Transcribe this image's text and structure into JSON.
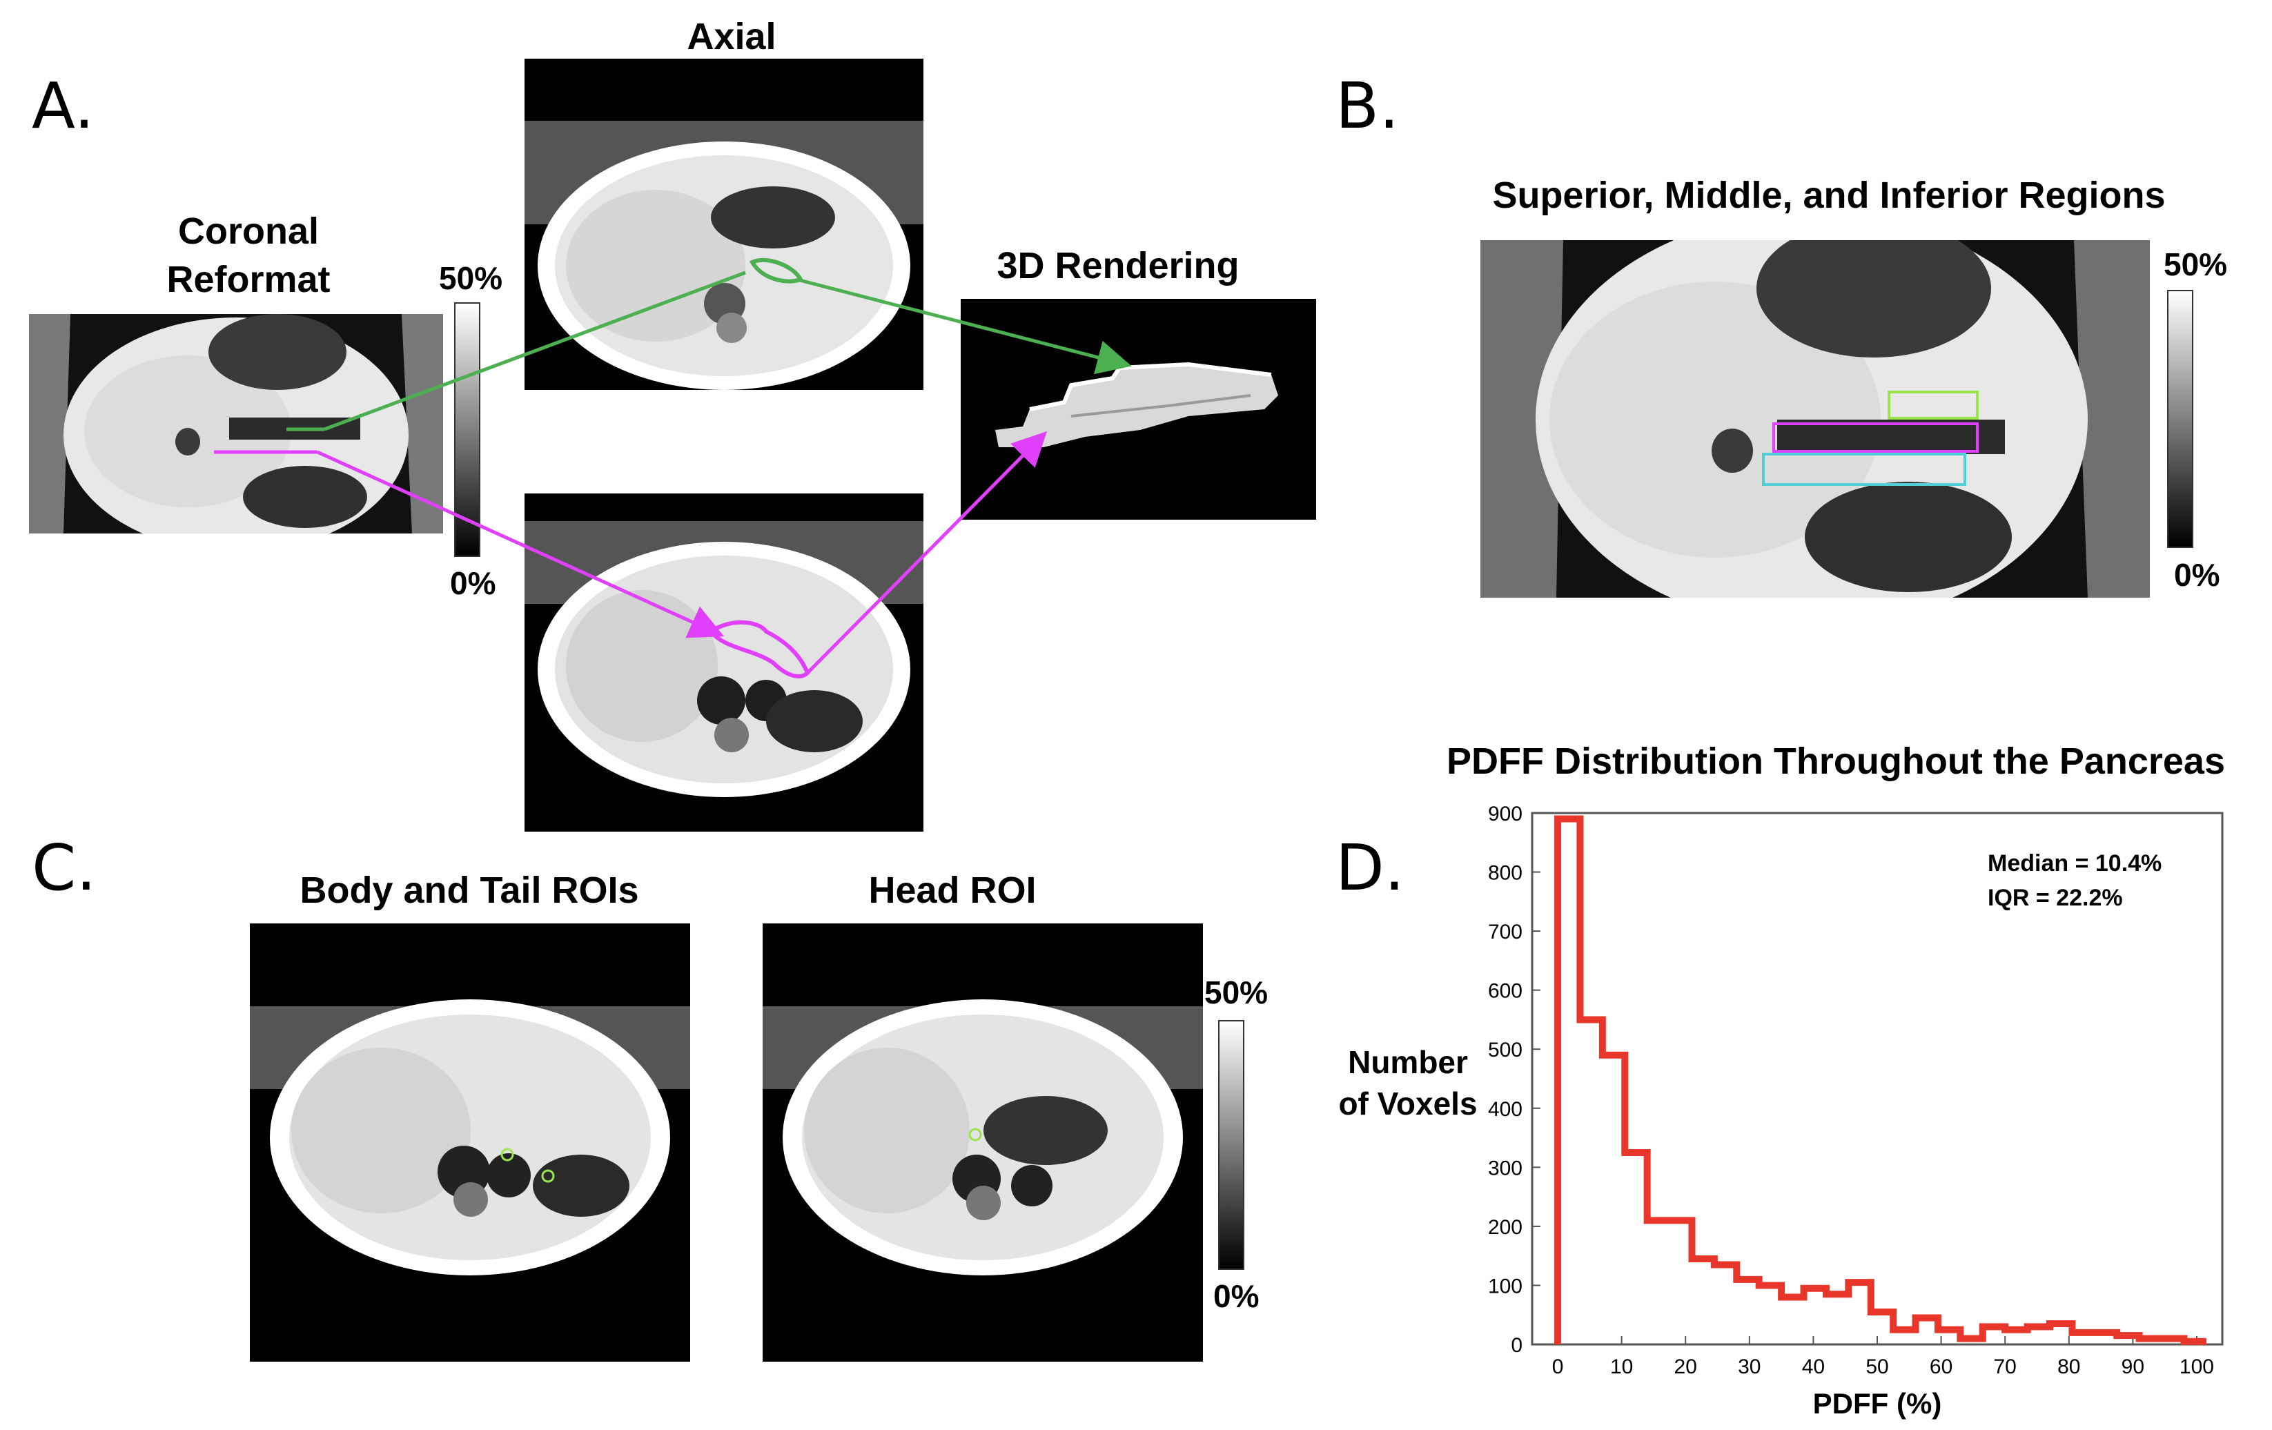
{
  "panels": {
    "a": {
      "letter": "A.",
      "coronal_title_1": "Coronal",
      "coronal_title_2": "Reformat",
      "axial_title": "Axial",
      "rendering_title": "3D Rendering",
      "cbar_top": "50%",
      "cbar_bottom": "0%"
    },
    "b": {
      "letter": "B.",
      "title": "Superior, Middle, and Inferior Regions",
      "cbar_top": "50%",
      "cbar_bottom": "0%"
    },
    "c": {
      "letter": "C.",
      "body_tail_title": "Body and Tail ROIs",
      "head_title": "Head ROI",
      "cbar_top": "50%",
      "cbar_bottom": "0%"
    },
    "d": {
      "letter": "D.",
      "title": "PDFF Distribution Throughout the Pancreas"
    }
  },
  "colors": {
    "green": "#4caf50",
    "magenta": "#e040fb",
    "lime": "#9be34a",
    "cyan": "#4fd0d8",
    "histogram": "#e8372a"
  },
  "chart_data": {
    "type": "bar",
    "title": "PDFF Distribution Throughout the Pancreas",
    "xlabel": "PDFF (%)",
    "ylabel_lines": [
      "Number",
      "of Voxels"
    ],
    "xlim": [
      -4,
      104
    ],
    "ylim": [
      0,
      900
    ],
    "xticks": [
      0,
      10,
      20,
      30,
      40,
      50,
      60,
      70,
      80,
      90,
      100
    ],
    "yticks": [
      0,
      100,
      200,
      300,
      400,
      500,
      600,
      700,
      800,
      900
    ],
    "bin_width": 3.5,
    "bin_starts": [
      0,
      3.5,
      7,
      10.5,
      14,
      17.5,
      21,
      24.5,
      28,
      31.5,
      35,
      38.5,
      42,
      45.5,
      49,
      52.5,
      56,
      59.5,
      63,
      66.5,
      70,
      73.5,
      77,
      80.5,
      84,
      87.5,
      91,
      94.5,
      98
    ],
    "values": [
      890,
      550,
      490,
      325,
      210,
      210,
      145,
      135,
      110,
      100,
      80,
      95,
      85,
      105,
      55,
      25,
      45,
      25,
      10,
      30,
      25,
      30,
      35,
      20,
      20,
      15,
      10,
      10,
      5
    ],
    "annotations": [
      "Median = 10.4%",
      "IQR = 22.2%"
    ]
  }
}
